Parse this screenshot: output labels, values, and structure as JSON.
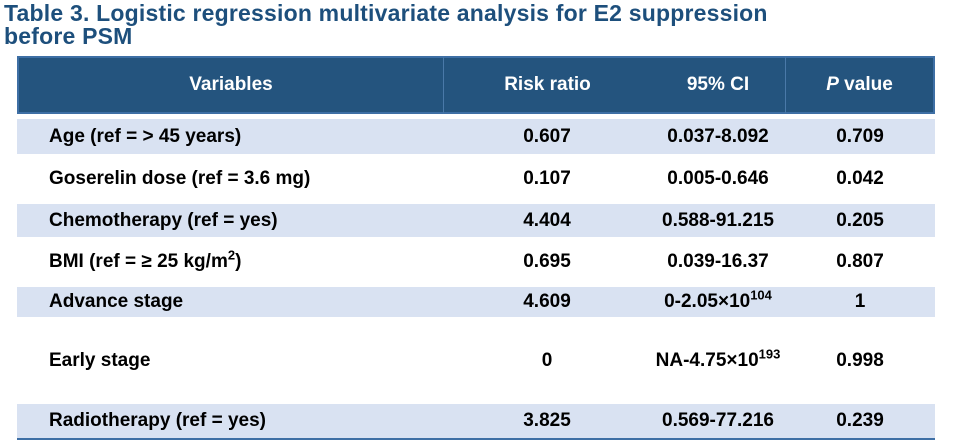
{
  "title": {
    "line1": "Table 3. Logistic regression multivariate analysis for E2 suppression",
    "line2": "before PSM"
  },
  "table": {
    "headers": [
      {
        "label": "Variables"
      },
      {
        "label": "Risk ratio"
      },
      {
        "label": "95% CI"
      },
      {
        "label_italic": "P",
        "label": " value"
      }
    ],
    "rows": [
      {
        "variable": {
          "pre": "Age (ref = > 45 years)",
          "sup": "",
          "post": ""
        },
        "risk_ratio": "0.607",
        "ci": {
          "pre": "0.037-8.092",
          "sup": "",
          "post": ""
        },
        "p_value": "0.709"
      },
      {
        "variable": {
          "pre": "Goserelin dose (ref = 3.6 mg)",
          "sup": "",
          "post": ""
        },
        "risk_ratio": "0.107",
        "ci": {
          "pre": "0.005-0.646",
          "sup": "",
          "post": ""
        },
        "p_value": "0.042"
      },
      {
        "variable": {
          "pre": "Chemotherapy (ref = yes)",
          "sup": "",
          "post": ""
        },
        "risk_ratio": "4.404",
        "ci": {
          "pre": "0.588-91.215",
          "sup": "",
          "post": ""
        },
        "p_value": "0.205"
      },
      {
        "variable": {
          "pre": "BMI (ref = ≥ 25 kg/m",
          "sup": "2",
          "post": ")"
        },
        "risk_ratio": "0.695",
        "ci": {
          "pre": "0.039-16.37",
          "sup": "",
          "post": ""
        },
        "p_value": "0.807"
      },
      {
        "variable": {
          "pre": "Advance stage",
          "sup": "",
          "post": ""
        },
        "risk_ratio": "4.609",
        "ci": {
          "pre": "0-2.05×10",
          "sup": "104",
          "post": ""
        },
        "p_value": "1"
      },
      {
        "variable": {
          "pre": "Early stage",
          "sup": "",
          "post": ""
        },
        "risk_ratio": "0",
        "ci": {
          "pre": "NA-4.75×10",
          "sup": "193",
          "post": ""
        },
        "p_value": "0.998"
      },
      {
        "variable": {
          "pre": "Radiotherapy (ref = yes)",
          "sup": "",
          "post": ""
        },
        "risk_ratio": "3.825",
        "ci": {
          "pre": "0.569-77.216",
          "sup": "",
          "post": ""
        },
        "p_value": "0.239"
      }
    ]
  },
  "colors": {
    "title_text": "#1D4F7C",
    "header_bg": "#24547E",
    "header_text": "#FFFFFF",
    "accent_border": "#3E6FA5",
    "row_band": "#D9E2F2",
    "body_text": "#000000"
  }
}
